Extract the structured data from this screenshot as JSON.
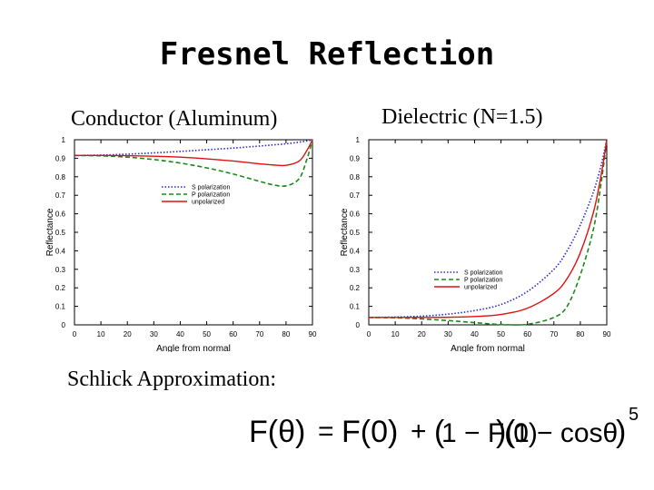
{
  "title": "Fresnel Reflection",
  "left_heading": "Conductor (Aluminum)",
  "right_heading": "Dielectric (N=1.5)",
  "schlick_label": "Schlick Approximation:",
  "formula": {
    "lhs": "F(θ)",
    "rhs_a": "F(0)",
    "plus": "+",
    "paren_open": "(",
    "one_minus_F0": "1 − F(0)",
    "one_minus_cos": "1 − cosθ",
    "paren_close": ")",
    "exponent": "5",
    "equals": "="
  },
  "series_styles": {
    "S polarization": {
      "color": "#2a2ad0",
      "dash": "dotted"
    },
    "P polarization": {
      "color": "#1a8a1a",
      "dash": "dashed"
    },
    "unpolarized": {
      "color": "#e01010",
      "dash": "solid"
    }
  },
  "chart_data": [
    {
      "type": "line",
      "xlabel": "Angle from normal",
      "ylabel": "Reflectance",
      "xlim": [
        0,
        90
      ],
      "ylim": [
        0,
        1
      ],
      "xticks": [
        0,
        10,
        20,
        30,
        40,
        50,
        60,
        70,
        80,
        90
      ],
      "yticks": [
        0,
        0.1,
        0.2,
        0.3,
        0.4,
        0.5,
        0.6,
        0.7,
        0.8,
        0.9,
        1
      ],
      "ytick_labels": [
        "0",
        "0.1",
        "0.2",
        "0.3",
        "0.4",
        "0.5",
        "0.6",
        "0.7",
        "0.8",
        "0.9",
        "1"
      ],
      "legend_position": "upper-middle",
      "x": [
        0,
        10,
        20,
        30,
        40,
        50,
        60,
        70,
        75,
        80,
        85,
        88,
        90
      ],
      "series": [
        {
          "name": "S polarization",
          "values": [
            0.915,
            0.917,
            0.922,
            0.929,
            0.937,
            0.946,
            0.955,
            0.966,
            0.972,
            0.978,
            0.987,
            0.994,
            1.0
          ]
        },
        {
          "name": "P polarization",
          "values": [
            0.915,
            0.913,
            0.906,
            0.893,
            0.874,
            0.848,
            0.815,
            0.775,
            0.757,
            0.751,
            0.79,
            0.9,
            1.0
          ]
        },
        {
          "name": "unpolarized",
          "values": [
            0.915,
            0.915,
            0.914,
            0.911,
            0.906,
            0.897,
            0.885,
            0.87,
            0.864,
            0.862,
            0.885,
            0.945,
            1.0
          ]
        }
      ]
    },
    {
      "type": "line",
      "xlabel": "Angle from normal",
      "ylabel": "Reflectance",
      "xlim": [
        0,
        90
      ],
      "ylim": [
        0,
        1
      ],
      "xticks": [
        0,
        10,
        20,
        30,
        40,
        50,
        60,
        70,
        80,
        90
      ],
      "yticks": [
        0,
        0.1,
        0.2,
        0.3,
        0.4,
        0.5,
        0.6,
        0.7,
        0.8,
        0.9,
        1
      ],
      "ytick_labels": [
        "0",
        "0.1",
        "0.2",
        "0.3",
        "0.4",
        "0.5",
        "0.6",
        "0.7",
        "0.8",
        "0.9",
        "1"
      ],
      "legend_position": "lower-right",
      "x": [
        0,
        10,
        20,
        30,
        40,
        50,
        60,
        70,
        75,
        80,
        85,
        88,
        90
      ],
      "series": [
        {
          "name": "S polarization",
          "values": [
            0.04,
            0.042,
            0.047,
            0.058,
            0.077,
            0.11,
            0.18,
            0.3,
            0.4,
            0.54,
            0.72,
            0.87,
            1.0
          ]
        },
        {
          "name": "P polarization",
          "values": [
            0.04,
            0.038,
            0.032,
            0.023,
            0.012,
            0.002,
            0.003,
            0.04,
            0.1,
            0.27,
            0.52,
            0.78,
            1.0
          ]
        },
        {
          "name": "unpolarized",
          "values": [
            0.04,
            0.04,
            0.04,
            0.041,
            0.045,
            0.056,
            0.09,
            0.17,
            0.25,
            0.39,
            0.61,
            0.82,
            1.0
          ]
        }
      ]
    }
  ]
}
